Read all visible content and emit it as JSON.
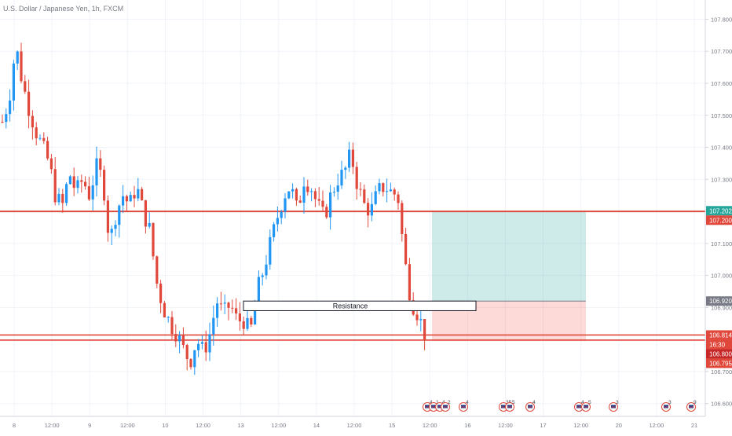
{
  "header": {
    "symbol_title": "U.S. Dollar / Japanese Yen, 1h, FXCM"
  },
  "annotations": {
    "resistance_label": "Resistance"
  },
  "price_badges": [
    {
      "label": "107.202",
      "value": 107.202,
      "color": "#26a69a"
    },
    {
      "label": "107.200",
      "value": 107.2,
      "color": "#e0483b"
    },
    {
      "label": "106.920",
      "value": 106.92,
      "color": "#787b86"
    },
    {
      "label": "106.814",
      "value": 106.814,
      "color": "#e0483b"
    },
    {
      "label": "16:30",
      "value": 106.8,
      "color": "#e0483b",
      "offset": 1
    },
    {
      "label": "106.800",
      "value": 106.8,
      "color": "#c62828",
      "offset": 2
    },
    {
      "label": "106.795",
      "value": 106.795,
      "color": "#e0483b",
      "offset": 3
    }
  ],
  "event_markers": [
    {
      "kind": "flag",
      "count": "4"
    },
    {
      "kind": "flag",
      "count": "1"
    },
    {
      "kind": "flag",
      "count": "4"
    },
    {
      "kind": "flag",
      "count": "2"
    },
    {
      "kind": "flag",
      "count": "4"
    },
    {
      "kind": "flag",
      "count": "35"
    },
    {
      "kind": "flag",
      "count": "5"
    },
    {
      "kind": "flag",
      "count": "4"
    },
    {
      "kind": "flag",
      "count": "4"
    },
    {
      "kind": "flag",
      "count": "5"
    },
    {
      "kind": "flag",
      "count": "3"
    },
    {
      "kind": "flag",
      "count": "3"
    },
    {
      "kind": "flag",
      "count": "9"
    }
  ],
  "chart_data": {
    "type": "candlestick",
    "title": "U.S. Dollar / Japanese Yen, 1h, FXCM",
    "ylim": [
      106.56,
      107.86
    ],
    "yticks": [
      106.6,
      106.7,
      106.8,
      106.9,
      107.0,
      107.1,
      107.2,
      107.3,
      107.4,
      107.5,
      107.6,
      107.7,
      107.8
    ],
    "ytick_labels": [
      "106.600",
      "106.700",
      "106.800",
      "106.900",
      "107.000",
      "107.100",
      "107.200",
      "107.300",
      "107.400",
      "107.500",
      "107.600",
      "107.700",
      "107.800"
    ],
    "xticks": [
      "8",
      "12:00",
      "9",
      "12:00",
      "10",
      "12:00",
      "13",
      "12:00",
      "14",
      "12:00",
      "15",
      "12:00",
      "16",
      "12:00",
      "17",
      "12:00",
      "20",
      "12:00",
      "21"
    ],
    "colors": {
      "up": "#2196f3",
      "down": "#e0483b",
      "level": "#e0483b",
      "target_zone": "#26a69a",
      "stop_zone": "#f44336"
    },
    "levels": [
      {
        "name": "resistance-top",
        "value": 107.2
      },
      {
        "name": "support-1",
        "value": 106.814
      },
      {
        "name": "support-2",
        "value": 106.798
      }
    ],
    "resistance_zone": {
      "label": "Resistance",
      "top": 106.92,
      "bottom": 106.89
    },
    "position": {
      "entry": 106.92,
      "target": 107.202,
      "stop": 106.795
    },
    "anchors": [
      107.48,
      107.55,
      107.72,
      107.6,
      107.52,
      107.45,
      107.4,
      107.35,
      107.24,
      107.22,
      107.32,
      107.26,
      107.3,
      107.25,
      107.34,
      107.3,
      107.1,
      107.2,
      107.25,
      107.22,
      107.28,
      107.2,
      107.14,
      106.98,
      106.9,
      106.85,
      106.82,
      106.77,
      106.73,
      106.8,
      106.76,
      106.82,
      106.92,
      106.88,
      106.91,
      106.86,
      106.86,
      106.82,
      106.95,
      107.02,
      107.1,
      107.18,
      107.25,
      107.28,
      107.2,
      107.3,
      107.28,
      107.22,
      107.18,
      107.25,
      107.3,
      107.32,
      107.38,
      107.28,
      107.22,
      107.2,
      107.26,
      107.28,
      107.26,
      107.25,
      107.05,
      106.92,
      106.88,
      106.82
    ]
  }
}
